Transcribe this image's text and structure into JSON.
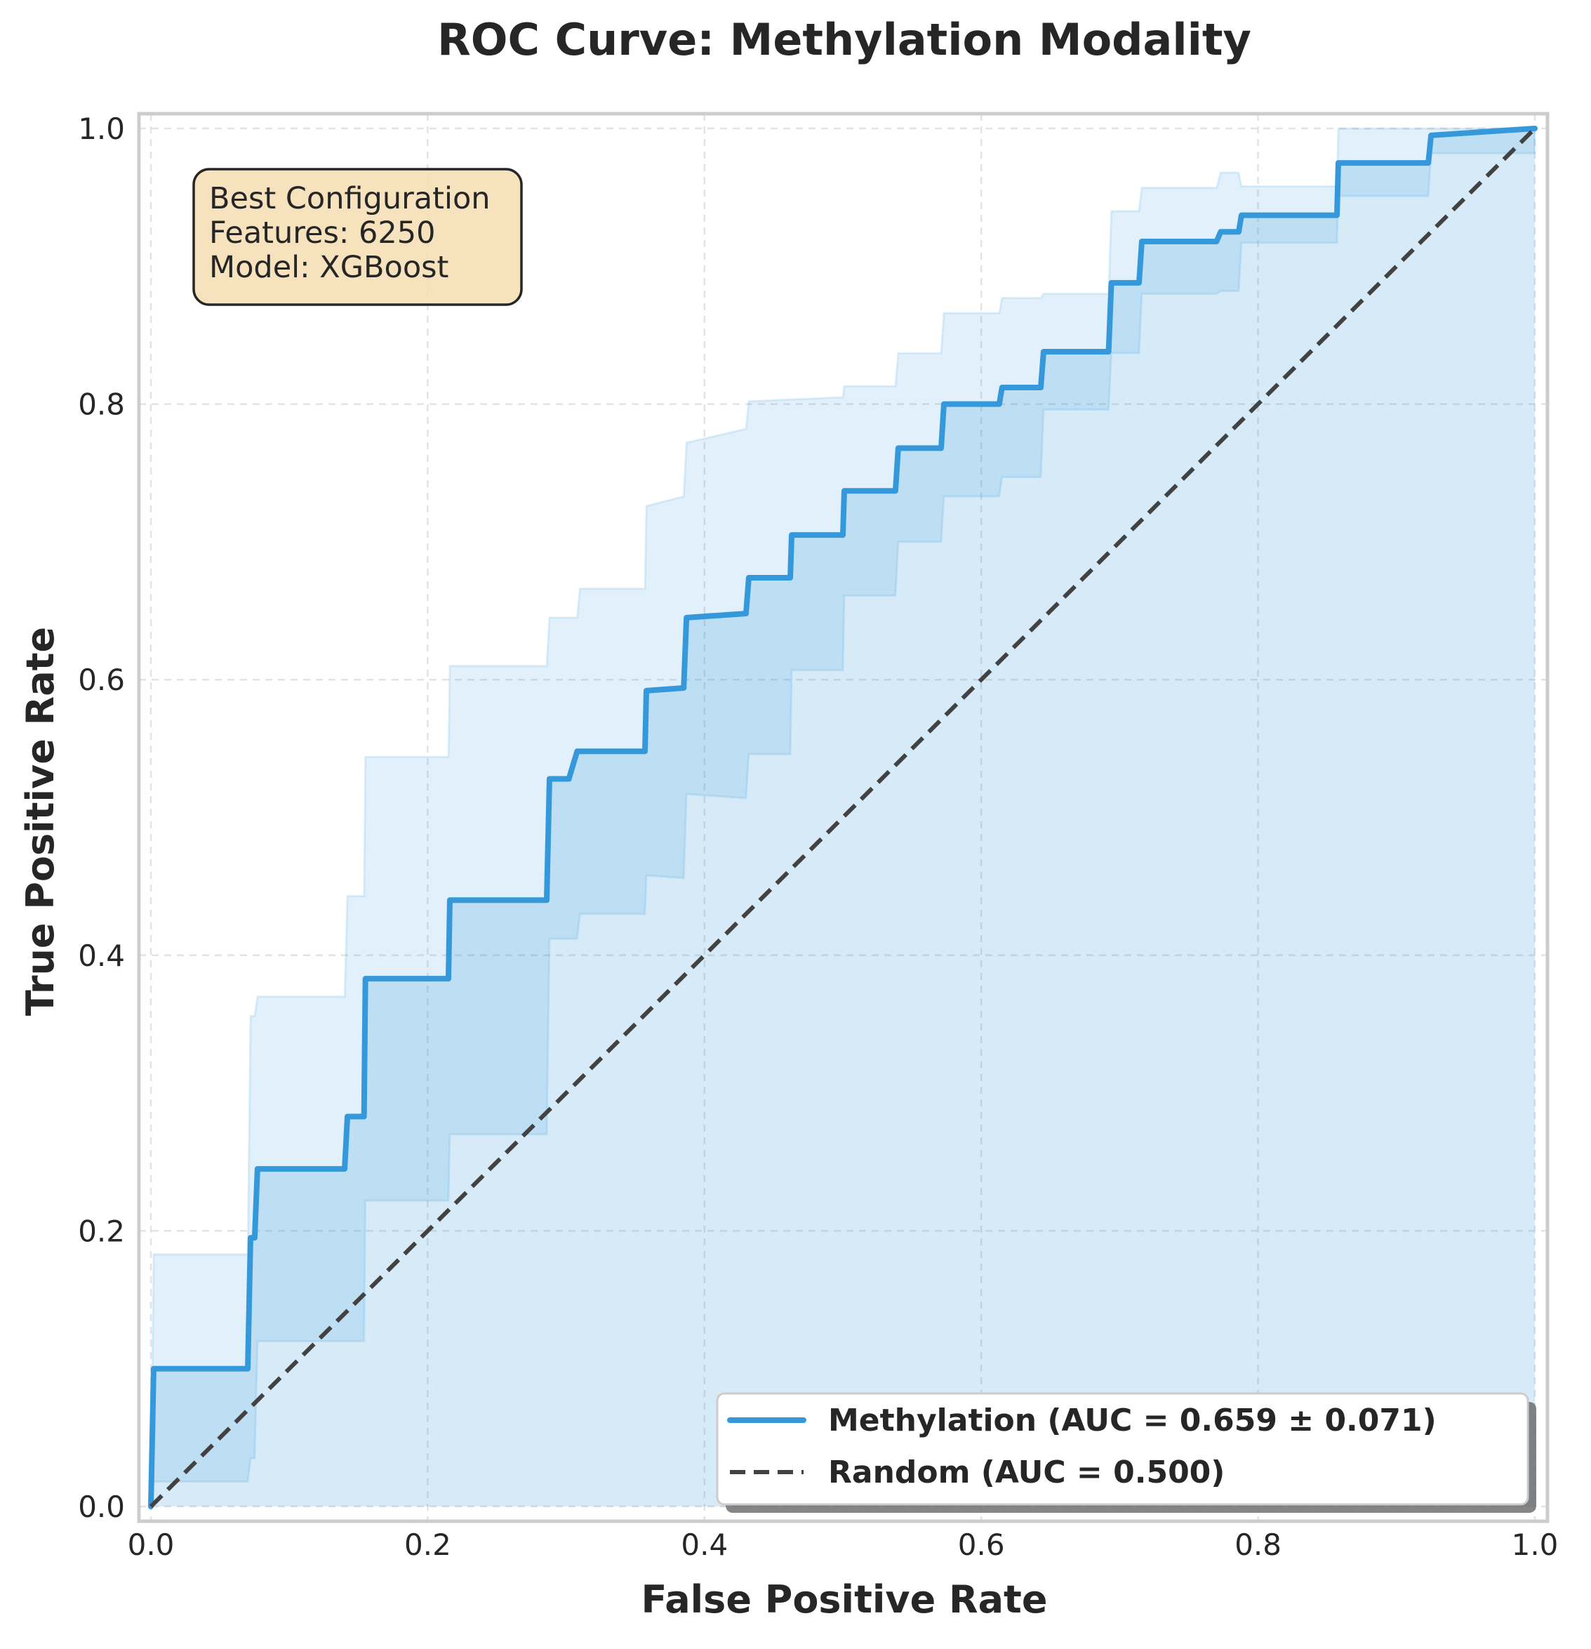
{
  "chart_data": {
    "type": "line",
    "title": "ROC Curve: Methylation Modality",
    "xlabel": "False Positive Rate",
    "ylabel": "True Positive Rate",
    "xlim": [
      0,
      1
    ],
    "ylim": [
      0,
      1
    ],
    "x_ticks": [
      "0.0",
      "0.2",
      "0.4",
      "0.6",
      "0.8",
      "1.0"
    ],
    "y_ticks": [
      "0.0",
      "0.2",
      "0.4",
      "0.6",
      "0.8",
      "1.0"
    ],
    "grid": true,
    "legend_position": "bottom-right",
    "annotation": {
      "lines": [
        "Best Configuration",
        "Features: 6250",
        "Model: XGBoost"
      ]
    },
    "series": [
      {
        "name": "Methylation (AUC = 0.659 ± 0.071)",
        "color": "#3498db",
        "style": "solid",
        "x": [
          0,
          0.002,
          0.07,
          0.072,
          0.075,
          0.077,
          0.14,
          0.142,
          0.154,
          0.155,
          0.215,
          0.216,
          0.286,
          0.288,
          0.302,
          0.308,
          0.357,
          0.358,
          0.385,
          0.387,
          0.43,
          0.432,
          0.462,
          0.463,
          0.5,
          0.501,
          0.538,
          0.54,
          0.571,
          0.573,
          0.613,
          0.615,
          0.643,
          0.645,
          0.692,
          0.694,
          0.714,
          0.716,
          0.77,
          0.773,
          0.786,
          0.788,
          0.857,
          0.858,
          0.923,
          0.925,
          1.0
        ],
        "y": [
          0,
          0.1,
          0.1,
          0.195,
          0.195,
          0.245,
          0.245,
          0.283,
          0.283,
          0.383,
          0.383,
          0.44,
          0.44,
          0.528,
          0.528,
          0.548,
          0.548,
          0.592,
          0.594,
          0.645,
          0.648,
          0.674,
          0.674,
          0.705,
          0.705,
          0.737,
          0.737,
          0.768,
          0.768,
          0.8,
          0.8,
          0.812,
          0.812,
          0.838,
          0.838,
          0.888,
          0.888,
          0.918,
          0.918,
          0.925,
          0.925,
          0.937,
          0.937,
          0.975,
          0.975,
          0.995,
          1.0
        ]
      },
      {
        "name": "Random (AUC = 0.500)",
        "color": "#424242",
        "style": "dashed",
        "x": [
          0,
          1
        ],
        "y": [
          0,
          1
        ]
      }
    ],
    "std_band": {
      "upper_x": [
        0,
        0.002,
        0.07,
        0.072,
        0.075,
        0.077,
        0.14,
        0.142,
        0.154,
        0.155,
        0.215,
        0.216,
        0.286,
        0.288,
        0.308,
        0.31,
        0.357,
        0.358,
        0.385,
        0.387,
        0.43,
        0.432,
        0.5,
        0.501,
        0.538,
        0.54,
        0.571,
        0.573,
        0.613,
        0.615,
        0.643,
        0.645,
        0.692,
        0.694,
        0.714,
        0.716,
        0.77,
        0.773,
        0.786,
        0.788,
        0.857,
        0.858,
        0.923,
        0.925,
        1.0
      ],
      "upper_y": [
        0,
        0.183,
        0.183,
        0.356,
        0.356,
        0.37,
        0.37,
        0.443,
        0.443,
        0.544,
        0.544,
        0.61,
        0.61,
        0.645,
        0.645,
        0.666,
        0.666,
        0.726,
        0.733,
        0.772,
        0.782,
        0.802,
        0.805,
        0.813,
        0.813,
        0.837,
        0.837,
        0.866,
        0.866,
        0.877,
        0.877,
        0.88,
        0.88,
        0.94,
        0.94,
        0.957,
        0.957,
        0.968,
        0.968,
        0.958,
        0.958,
        1.0,
        1.0,
        1.0,
        1.0
      ],
      "lower_x": [
        0,
        0.002,
        0.07,
        0.072,
        0.075,
        0.077,
        0.14,
        0.142,
        0.154,
        0.155,
        0.215,
        0.216,
        0.286,
        0.288,
        0.308,
        0.31,
        0.357,
        0.358,
        0.385,
        0.387,
        0.43,
        0.432,
        0.462,
        0.463,
        0.5,
        0.501,
        0.538,
        0.54,
        0.571,
        0.573,
        0.613,
        0.615,
        0.643,
        0.645,
        0.692,
        0.694,
        0.714,
        0.716,
        0.77,
        0.773,
        0.786,
        0.788,
        0.857,
        0.858,
        0.923,
        0.925,
        1.0
      ],
      "lower_y": [
        0,
        0.018,
        0.018,
        0.035,
        0.035,
        0.12,
        0.12,
        0.12,
        0.12,
        0.222,
        0.222,
        0.27,
        0.27,
        0.412,
        0.412,
        0.43,
        0.43,
        0.458,
        0.456,
        0.517,
        0.514,
        0.546,
        0.546,
        0.607,
        0.607,
        0.661,
        0.661,
        0.7,
        0.7,
        0.733,
        0.733,
        0.747,
        0.747,
        0.796,
        0.796,
        0.837,
        0.837,
        0.88,
        0.88,
        0.882,
        0.882,
        0.917,
        0.917,
        0.951,
        0.951,
        0.982,
        0.982
      ]
    }
  }
}
